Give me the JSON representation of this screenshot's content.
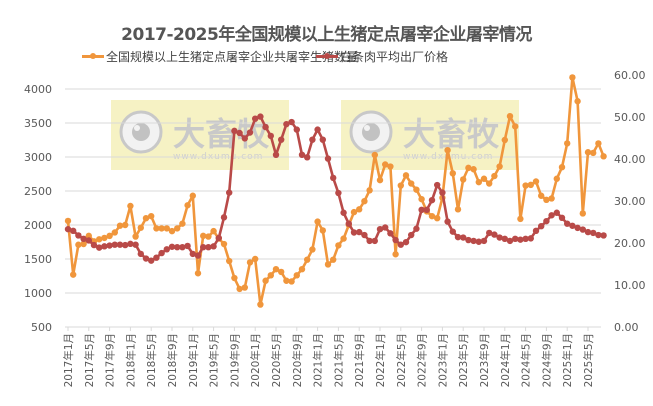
{
  "chart_data": {
    "type": "line",
    "title": "2017-2025年全国规模以上生猪定点屠宰企业屠宰情况",
    "xlabel": "",
    "ylabel_left": "",
    "ylabel_right": "",
    "ylim_left": [
      500,
      4000
    ],
    "ylim_right": [
      0,
      60
    ],
    "yticks_left": [
      "500",
      "1000",
      "1500",
      "2000",
      "2500",
      "3000",
      "3500",
      "4000"
    ],
    "yticks_right": [
      "0.00",
      "10.00",
      "20.00",
      "30.00",
      "40.00",
      "50.00",
      "60.00"
    ],
    "grid": true,
    "legend_position": "top",
    "x_tick_labels": [
      "2017年1月",
      "2017年5月",
      "2017年9月",
      "2018年1月",
      "2018年5月",
      "2018年9月",
      "2019年1月",
      "2019年5月",
      "2019年9月",
      "2020年1月",
      "2020年5月",
      "2020年9月",
      "2021年1月",
      "2021年5月",
      "2021年9月",
      "2022年1月",
      "2022年5月",
      "2022年9月",
      "2023年1月",
      "2023年5月",
      "2023年9月",
      "2024年1月",
      "2024年5月",
      "2024年9月",
      "2025年1月",
      "2025年5月"
    ],
    "x_start": "2017-01",
    "x_step": "1 month",
    "series": [
      {
        "name": "全国规模以上生猪定点屠宰企业共屠宰生猪数量",
        "axis": "left",
        "color": "#F0963C",
        "values": [
          2060,
          1270,
          1710,
          1720,
          1840,
          1760,
          1790,
          1810,
          1840,
          1890,
          1990,
          2000,
          2280,
          1830,
          1960,
          2100,
          2130,
          1950,
          1950,
          1950,
          1910,
          1950,
          2020,
          2290,
          2430,
          1290,
          1840,
          1830,
          1910,
          1800,
          1720,
          1470,
          1220,
          1060,
          1080,
          1450,
          1500,
          830,
          1180,
          1260,
          1350,
          1310,
          1180,
          1170,
          1260,
          1350,
          1490,
          1640,
          2050,
          1920,
          1420,
          1490,
          1700,
          1800,
          2000,
          2190,
          2230,
          2350,
          2510,
          3030,
          2660,
          2890,
          2860,
          1570,
          2580,
          2730,
          2610,
          2520,
          2380,
          2200,
          2130,
          2100,
          2400,
          3100,
          2760,
          2230,
          2670,
          2840,
          2820,
          2630,
          2680,
          2610,
          2720,
          2860,
          3250,
          3600,
          3450,
          2090,
          2580,
          2590,
          2640,
          2430,
          2370,
          2390,
          2680,
          2850,
          3200,
          4170,
          3820,
          2170,
          3070,
          3060,
          3200,
          3010
        ]
      },
      {
        "name": "白条肉平均出厂价格",
        "axis": "right",
        "color": "#B94A48",
        "values": [
          23.3,
          22.9,
          21.8,
          21.0,
          20.6,
          19.5,
          18.9,
          19.2,
          19.4,
          19.6,
          19.6,
          19.5,
          19.8,
          19.6,
          17.4,
          16.3,
          15.8,
          16.5,
          17.6,
          18.5,
          19.1,
          19.0,
          19.0,
          19.3,
          17.4,
          17.0,
          19.0,
          19.0,
          19.2,
          21.2,
          26.1,
          32.0,
          46.7,
          46.2,
          44.9,
          46.3,
          49.6,
          50.1,
          47.6,
          45.5,
          41.0,
          44.6,
          48.3,
          48.8,
          47.0,
          41.0,
          40.4,
          44.6,
          47.0,
          44.6,
          40.1,
          35.5,
          31.9,
          27.2,
          24.6,
          22.5,
          22.6,
          21.9,
          20.5,
          20.5,
          23.3,
          23.7,
          22.3,
          20.7,
          19.6,
          20.2,
          21.9,
          23.4,
          27.9,
          27.9,
          30.2,
          33.8,
          32.0,
          25.1,
          22.7,
          21.4,
          21.3,
          20.7,
          20.5,
          20.3,
          20.5,
          22.4,
          22.0,
          21.3,
          21.0,
          20.5,
          21.0,
          20.8,
          21.0,
          21.1,
          22.9,
          24.0,
          25.2,
          26.6,
          27.2,
          26.0,
          24.6,
          24.1,
          23.6,
          23.2,
          22.6,
          22.4,
          21.9,
          21.8
        ]
      }
    ]
  },
  "title": "2017-2025年全国规模以上生猪定点屠宰企业屠宰情况",
  "legend": {
    "items": [
      {
        "label": "全国规模以上生猪定点屠宰企业共屠宰生猪数量",
        "color": "#F0963C"
      },
      {
        "label": "白条肉平均出厂价格",
        "color": "#B94A48"
      }
    ]
  },
  "watermark": {
    "brand": "大畜牧",
    "url": "www.dxumu.com"
  }
}
